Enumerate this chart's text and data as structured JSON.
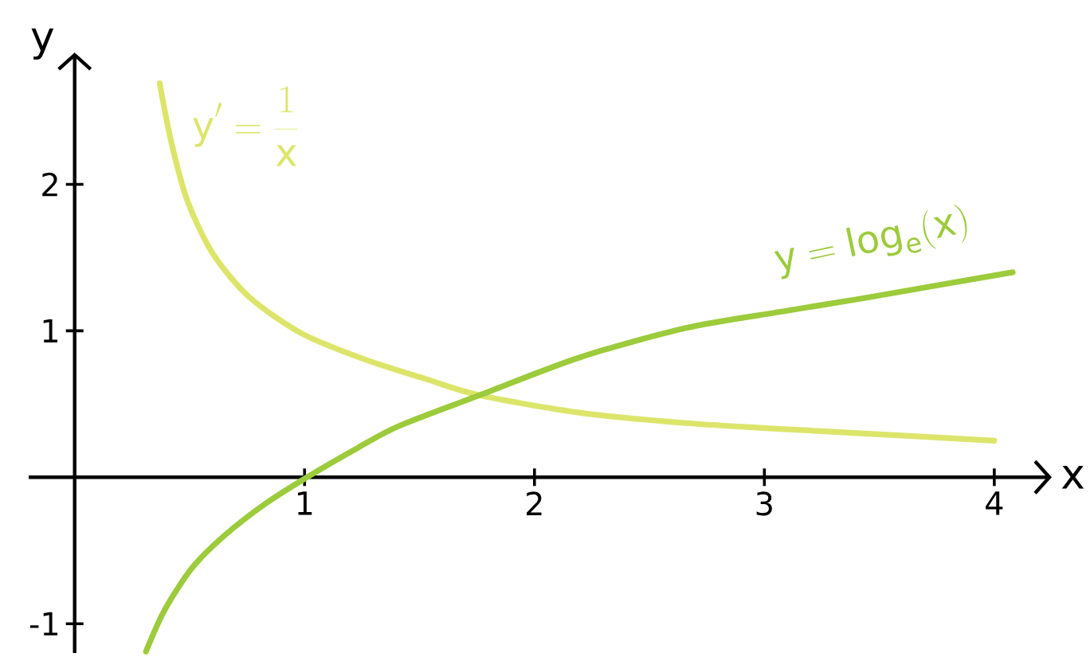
{
  "chart_data": {
    "type": "line",
    "xlabel": "x",
    "ylabel": "y",
    "xlim": [
      -0.2,
      4.25
    ],
    "ylim": [
      -1.2,
      2.9
    ],
    "xticks": [
      1,
      2,
      3,
      4
    ],
    "yticks": [
      -1,
      1,
      2
    ],
    "marker": "none",
    "line_style": "solid",
    "series": [
      {
        "name": "y' = \\frac{1}{x}",
        "color": "#dce56a",
        "x": [
          0.37,
          0.42,
          0.49,
          0.6,
          0.76,
          0.99,
          1.27,
          1.53,
          1.76,
          2.2,
          2.66,
          3.07,
          3.42,
          4.0
        ],
        "values": [
          2.69,
          2.29,
          1.89,
          1.53,
          1.23,
          0.98,
          0.8,
          0.67,
          0.56,
          0.44,
          0.37,
          0.33,
          0.3,
          0.25
        ]
      },
      {
        "name": "y = \\log_e(x)",
        "color": "#9ccb3b",
        "x": [
          0.31,
          0.39,
          0.51,
          0.65,
          0.83,
          1.01,
          1.23,
          1.41,
          1.76,
          2.2,
          2.66,
          3.07,
          3.42,
          4.08
        ],
        "values": [
          -1.19,
          -0.91,
          -0.62,
          -0.4,
          -0.18,
          0.0,
          0.2,
          0.35,
          0.56,
          0.82,
          1.02,
          1.13,
          1.22,
          1.4
        ]
      }
    ]
  }
}
